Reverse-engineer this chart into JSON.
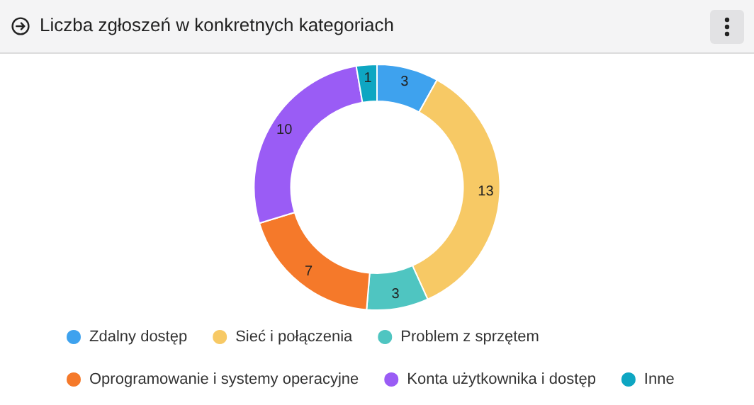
{
  "chart_data": {
    "type": "donut",
    "title": "Liczba zgłoszeń w konkretnych kategoriach",
    "categories": [
      "Zdalny dostęp",
      "Sieć i połączenia",
      "Problem z sprzętem",
      "Oprogramowanie i systemy operacyjne",
      "Konta użytkownika i dostęp",
      "Inne"
    ],
    "values": [
      3,
      13,
      3,
      7,
      10,
      1
    ],
    "colors": [
      "#3ea2ee",
      "#f7c965",
      "#4fc5c1",
      "#f5792a",
      "#9a5cf5",
      "#0ea6c2"
    ],
    "data_labels": true,
    "legend": "bottom"
  }
}
